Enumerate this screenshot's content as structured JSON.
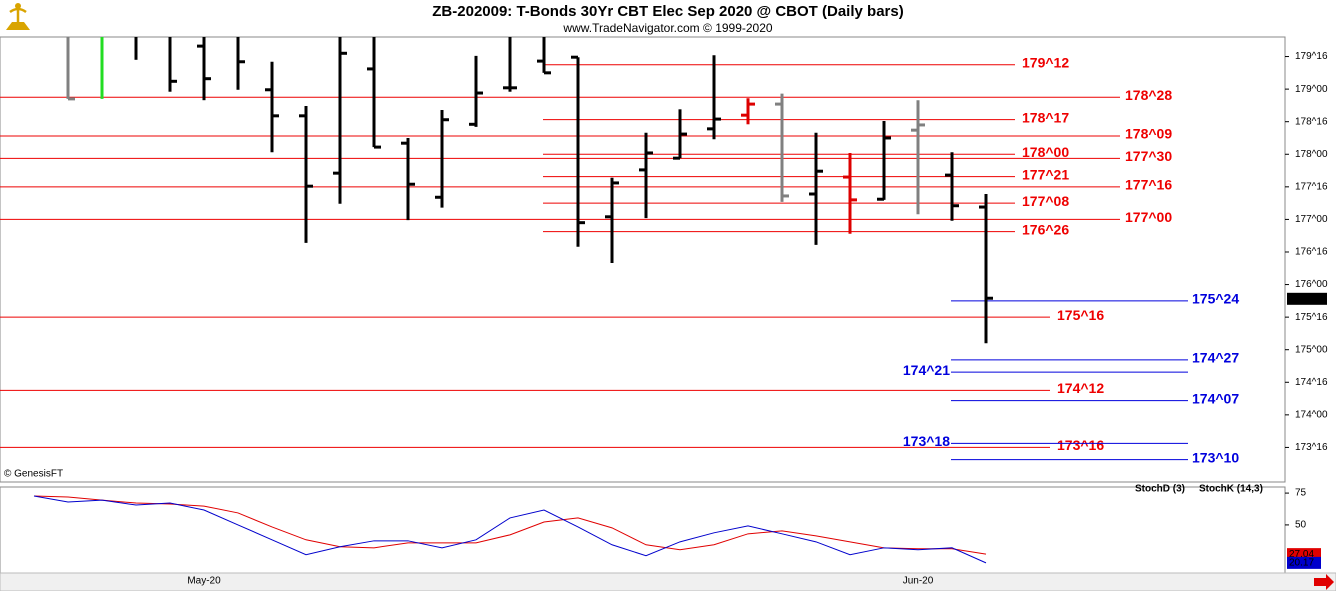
{
  "chart_data": {
    "type": "ohlc",
    "title": "ZB-202009:  T-Bonds 30Yr CBT Elec Sep 2020 @ CBOT  (Daily bars)",
    "subtitle": "www.TradeNavigator.com © 1999-2020",
    "copyright": "© GenesisFT",
    "categories": [
      null,
      null,
      null,
      null,
      null,
      "May-20",
      null,
      null,
      null,
      null,
      null,
      null,
      null,
      null,
      null,
      null,
      null,
      null,
      null,
      null,
      null,
      null,
      null,
      null,
      null,
      null,
      "Jun-20",
      null,
      null
    ],
    "open": [
      null,
      null,
      null,
      null,
      null,
      179.66,
      null,
      178.99,
      178.59,
      177.71,
      179.31,
      178.17,
      177.34,
      178.46,
      179.02,
      179.43,
      179.49,
      177.04,
      177.76,
      177.94,
      178.39,
      178.6,
      178.77,
      177.39,
      177.65,
      177.31,
      178.37,
      177.68,
      177.19
    ],
    "high": [
      null,
      179.8,
      179.8,
      179.8,
      179.8,
      179.8,
      179.8,
      179.42,
      178.74,
      179.8,
      179.8,
      178.25,
      178.68,
      179.51,
      179.8,
      179.8,
      179.49,
      177.64,
      178.33,
      178.69,
      179.52,
      178.86,
      178.93,
      178.33,
      178.02,
      178.51,
      178.83,
      178.03,
      177.39
    ],
    "low": [
      null,
      178.85,
      178.85,
      179.45,
      178.96,
      178.83,
      178.99,
      178.03,
      176.64,
      177.24,
      178.11,
      176.99,
      177.18,
      178.42,
      178.96,
      179.25,
      176.58,
      176.33,
      177.02,
      177.94,
      178.23,
      178.46,
      177.27,
      176.61,
      176.78,
      177.3,
      177.08,
      176.98,
      175.1
    ],
    "close": [
      null,
      178.85,
      null,
      null,
      179.12,
      179.16,
      179.42,
      178.59,
      177.51,
      179.55,
      178.11,
      177.54,
      178.53,
      178.94,
      179.02,
      179.25,
      176.95,
      177.56,
      178.02,
      178.31,
      178.54,
      178.77,
      177.36,
      177.74,
      177.3,
      178.25,
      178.45,
      177.21,
      175.79
    ],
    "bar_colors": [
      null,
      "#808080",
      "#22dd22",
      "#000000",
      "#000000",
      "#000000",
      "#000000",
      "#000000",
      "#000000",
      "#000000",
      "#000000",
      "#000000",
      "#000000",
      "#000000",
      "#000000",
      "#000000",
      "#000000",
      "#000000",
      "#000000",
      "#000000",
      "#000000",
      "#dd0000",
      "#808080",
      "#000000",
      "#dd0000",
      "#000000",
      "#808080",
      "#000000",
      "#000000"
    ],
    "ylim": [
      173.0,
      179.8
    ],
    "yticks": [
      {
        "value": 179.5,
        "label": "179^16"
      },
      {
        "value": 179.0,
        "label": "179^00"
      },
      {
        "value": 178.5,
        "label": "178^16"
      },
      {
        "value": 178.0,
        "label": "178^00"
      },
      {
        "value": 177.5,
        "label": "177^16"
      },
      {
        "value": 177.0,
        "label": "177^00"
      },
      {
        "value": 176.5,
        "label": "176^16"
      },
      {
        "value": 176.0,
        "label": "176^00"
      },
      {
        "value": 175.5,
        "label": "175^16"
      },
      {
        "value": 175.0,
        "label": "175^00"
      },
      {
        "value": 174.5,
        "label": "174^16"
      },
      {
        "value": 174.0,
        "label": "174^00"
      },
      {
        "value": 173.5,
        "label": "173^16"
      }
    ],
    "last_price": {
      "value": 175.78125,
      "label": "175^25"
    },
    "levels": [
      {
        "value": 179.375,
        "label": "179^12",
        "color": "#ee0000"
      },
      {
        "value": 178.875,
        "label": "178^28",
        "color": "#ee0000"
      },
      {
        "value": 178.53125,
        "label": "178^17",
        "color": "#ee0000"
      },
      {
        "value": 178.28125,
        "label": "178^09",
        "color": "#ee0000"
      },
      {
        "value": 178.0,
        "label": "178^00",
        "color": "#ee0000"
      },
      {
        "value": 177.9375,
        "label": "177^30",
        "color": "#ee0000"
      },
      {
        "value": 177.65625,
        "label": "177^21",
        "color": "#ee0000"
      },
      {
        "value": 177.5,
        "label": "177^16",
        "color": "#ee0000"
      },
      {
        "value": 177.25,
        "label": "177^08",
        "color": "#ee0000"
      },
      {
        "value": 177.0,
        "label": "177^00",
        "color": "#ee0000"
      },
      {
        "value": 176.8125,
        "label": "176^26",
        "color": "#ee0000"
      },
      {
        "value": 175.5,
        "label": "175^16",
        "color": "#ee0000"
      },
      {
        "value": 174.375,
        "label": "174^12",
        "color": "#ee0000"
      },
      {
        "value": 173.5,
        "label": "173^16",
        "color": "#ee0000"
      },
      {
        "value": 175.75,
        "label": "175^24",
        "color": "#0000dd"
      },
      {
        "value": 174.84375,
        "label": "174^27",
        "color": "#0000dd"
      },
      {
        "value": 174.65625,
        "label": "174^21",
        "color": "#0000dd"
      },
      {
        "value": 174.21875,
        "label": "174^07",
        "color": "#0000dd"
      },
      {
        "value": 173.5625,
        "label": "173^18",
        "color": "#0000dd"
      },
      {
        "value": 173.3125,
        "label": "173^10",
        "color": "#0000dd"
      }
    ],
    "indicator": {
      "type": "line",
      "ylim": [
        13,
        79
      ],
      "yticks": [
        50,
        75
      ],
      "series": [
        {
          "name": "StochD (3)",
          "color": "#e00000",
          "values": [
            72.7,
            71.9,
            69.5,
            67.2,
            66.4,
            64.8,
            59.4,
            48.4,
            38.3,
            32.8,
            32.0,
            35.9,
            35.9,
            35.9,
            42.2,
            52.3,
            55.5,
            47.7,
            34.4,
            30.5,
            34.4,
            43.0,
            45.3,
            41.4,
            36.7,
            32.0,
            31.3,
            31.3,
            27.04
          ]
        },
        {
          "name": "StochK (14,3)",
          "color": "#0000cc",
          "values": [
            72.7,
            68.0,
            69.5,
            65.6,
            67.2,
            61.7,
            50.0,
            38.3,
            26.6,
            32.8,
            37.5,
            37.5,
            32.0,
            38.3,
            55.5,
            61.7,
            48.4,
            34.4,
            25.8,
            36.7,
            43.8,
            49.2,
            43.0,
            36.7,
            26.6,
            32.0,
            30.5,
            32.0,
            20.17
          ]
        }
      ]
    }
  }
}
